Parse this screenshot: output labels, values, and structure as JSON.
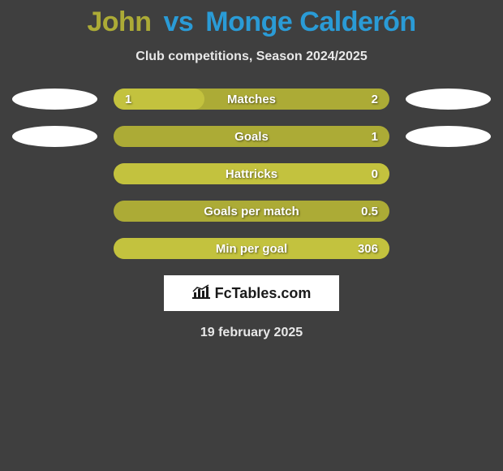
{
  "title": {
    "player1": "John",
    "vs": "vs",
    "player2": "Monge Calderón",
    "p1_color": "#acab36",
    "vs_color": "#2a9bd6",
    "p2_color": "#2a9bd6"
  },
  "subtitle": "Club competitions, Season 2024/2025",
  "bars": {
    "track_width": 340,
    "track_color": "#acab36",
    "fill_color": "#c3c23e",
    "border_radius": 13,
    "text_color": "#ffffff",
    "label_fontsize": 15,
    "rows": [
      {
        "label": "Matches",
        "left": "1",
        "right": "2",
        "fill_pct": 33,
        "show_left": true
      },
      {
        "label": "Goals",
        "left": "",
        "right": "1",
        "fill_pct": 0,
        "show_left": false
      },
      {
        "label": "Hattricks",
        "left": "",
        "right": "0",
        "fill_pct": 100,
        "show_left": false
      },
      {
        "label": "Goals per match",
        "left": "",
        "right": "0.5",
        "fill_pct": 0,
        "show_left": false
      },
      {
        "label": "Min per goal",
        "left": "",
        "right": "306",
        "fill_pct": 100,
        "show_left": false
      }
    ]
  },
  "photos": {
    "show_on_rows": [
      0,
      1
    ],
    "bg_color": "#ffffff"
  },
  "brand": {
    "icon": "chart-icon",
    "text": "FcTables.com"
  },
  "date": "19 february 2025",
  "background_color": "#3f3f3f"
}
